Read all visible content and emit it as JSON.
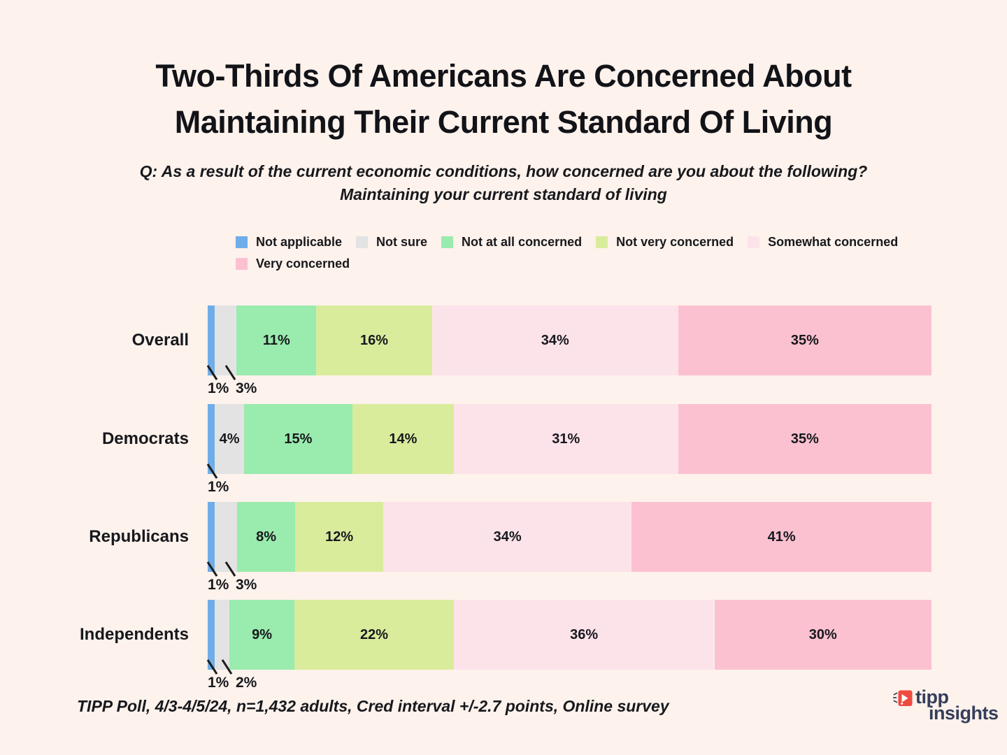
{
  "title": {
    "line1": "Two-Thirds Of Americans Are Concerned About",
    "line2": "Maintaining Their Current Standard Of Living"
  },
  "subtitle": {
    "line1": "Q: As a result of the current economic conditions, how concerned are you about the following?",
    "line2": "Maintaining your current standard of living"
  },
  "chart_data": {
    "type": "bar",
    "subtype": "horizontal_stacked",
    "title": "Two-Thirds Of Americans Are Concerned About Maintaining Their Current Standard Of Living",
    "categories": [
      "Overall",
      "Democrats",
      "Republicans",
      "Independents"
    ],
    "series": [
      {
        "name": "Not applicable",
        "color": "#6FADE8",
        "values": [
          1,
          1,
          1,
          1
        ]
      },
      {
        "name": "Not sure",
        "color": "#E3E3E3",
        "values": [
          3,
          4,
          3,
          2
        ]
      },
      {
        "name": "Not at all concerned",
        "color": "#9AEBAE",
        "values": [
          11,
          15,
          8,
          9
        ]
      },
      {
        "name": "Not very concerned",
        "color": "#D9EC9C",
        "values": [
          16,
          14,
          12,
          22
        ]
      },
      {
        "name": "Somewhat concerned",
        "color": "#FCE3EA",
        "values": [
          34,
          31,
          34,
          36
        ]
      },
      {
        "name": "Very concerned",
        "color": "#FCC1D1",
        "values": [
          35,
          35,
          41,
          30
        ]
      }
    ],
    "value_suffix": "%",
    "xlim": [
      0,
      100
    ],
    "grid": false,
    "legend_position": "top",
    "legend_row_break_after": 5,
    "outside_label_threshold": 3
  },
  "footer": {
    "text": "TIPP Poll, 4/3-4/5/24, n=1,432 adults, Cred interval +/-2.7 points, Online survey"
  },
  "logo": {
    "line1": "tipp",
    "line2": "insights",
    "accent_color": "#EE4B40",
    "text_color": "#363E5A"
  },
  "background_color": "#FDF2EC"
}
